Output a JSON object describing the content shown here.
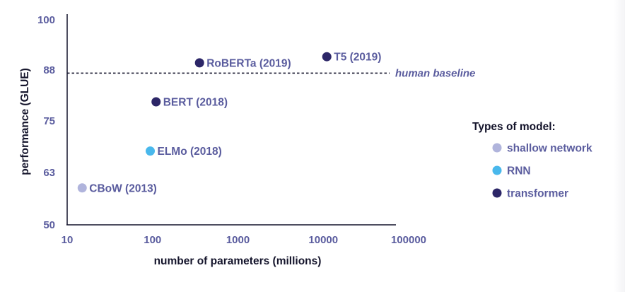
{
  "chart_data": {
    "type": "scatter",
    "title": "",
    "xlabel": "number of parameters (millions)",
    "ylabel": "performance (GLUE)",
    "xscale": "log",
    "xlim": [
      10,
      100000
    ],
    "ylim": [
      50,
      100
    ],
    "x_ticks": [
      "10",
      "100",
      "1000",
      "10000",
      "100000"
    ],
    "y_ticks": [
      "100",
      "88",
      "75",
      "63",
      "50"
    ],
    "grid": false,
    "reference_line": {
      "label": "human baseline",
      "y": 87,
      "style": "dashed"
    },
    "points": [
      {
        "label": "CBoW (2013)",
        "x": 15,
        "y": 59,
        "type": "shallow network"
      },
      {
        "label": "ELMo (2018)",
        "x": 94,
        "y": 68,
        "type": "RNN"
      },
      {
        "label": "BERT (2018)",
        "x": 110,
        "y": 80,
        "type": "transformer"
      },
      {
        "label": "RoBERTa (2019)",
        "x": 355,
        "y": 89.5,
        "type": "transformer"
      },
      {
        "label": "T5 (2019)",
        "x": 11000,
        "y": 91,
        "type": "transformer"
      }
    ],
    "legend": {
      "title": "Types of model:",
      "position": "right",
      "entries": [
        {
          "name": "shallow network",
          "color": "#b0b4dc"
        },
        {
          "name": "RNN",
          "color": "#49b8ec"
        },
        {
          "name": "transformer",
          "color": "#2c2667"
        }
      ]
    }
  }
}
